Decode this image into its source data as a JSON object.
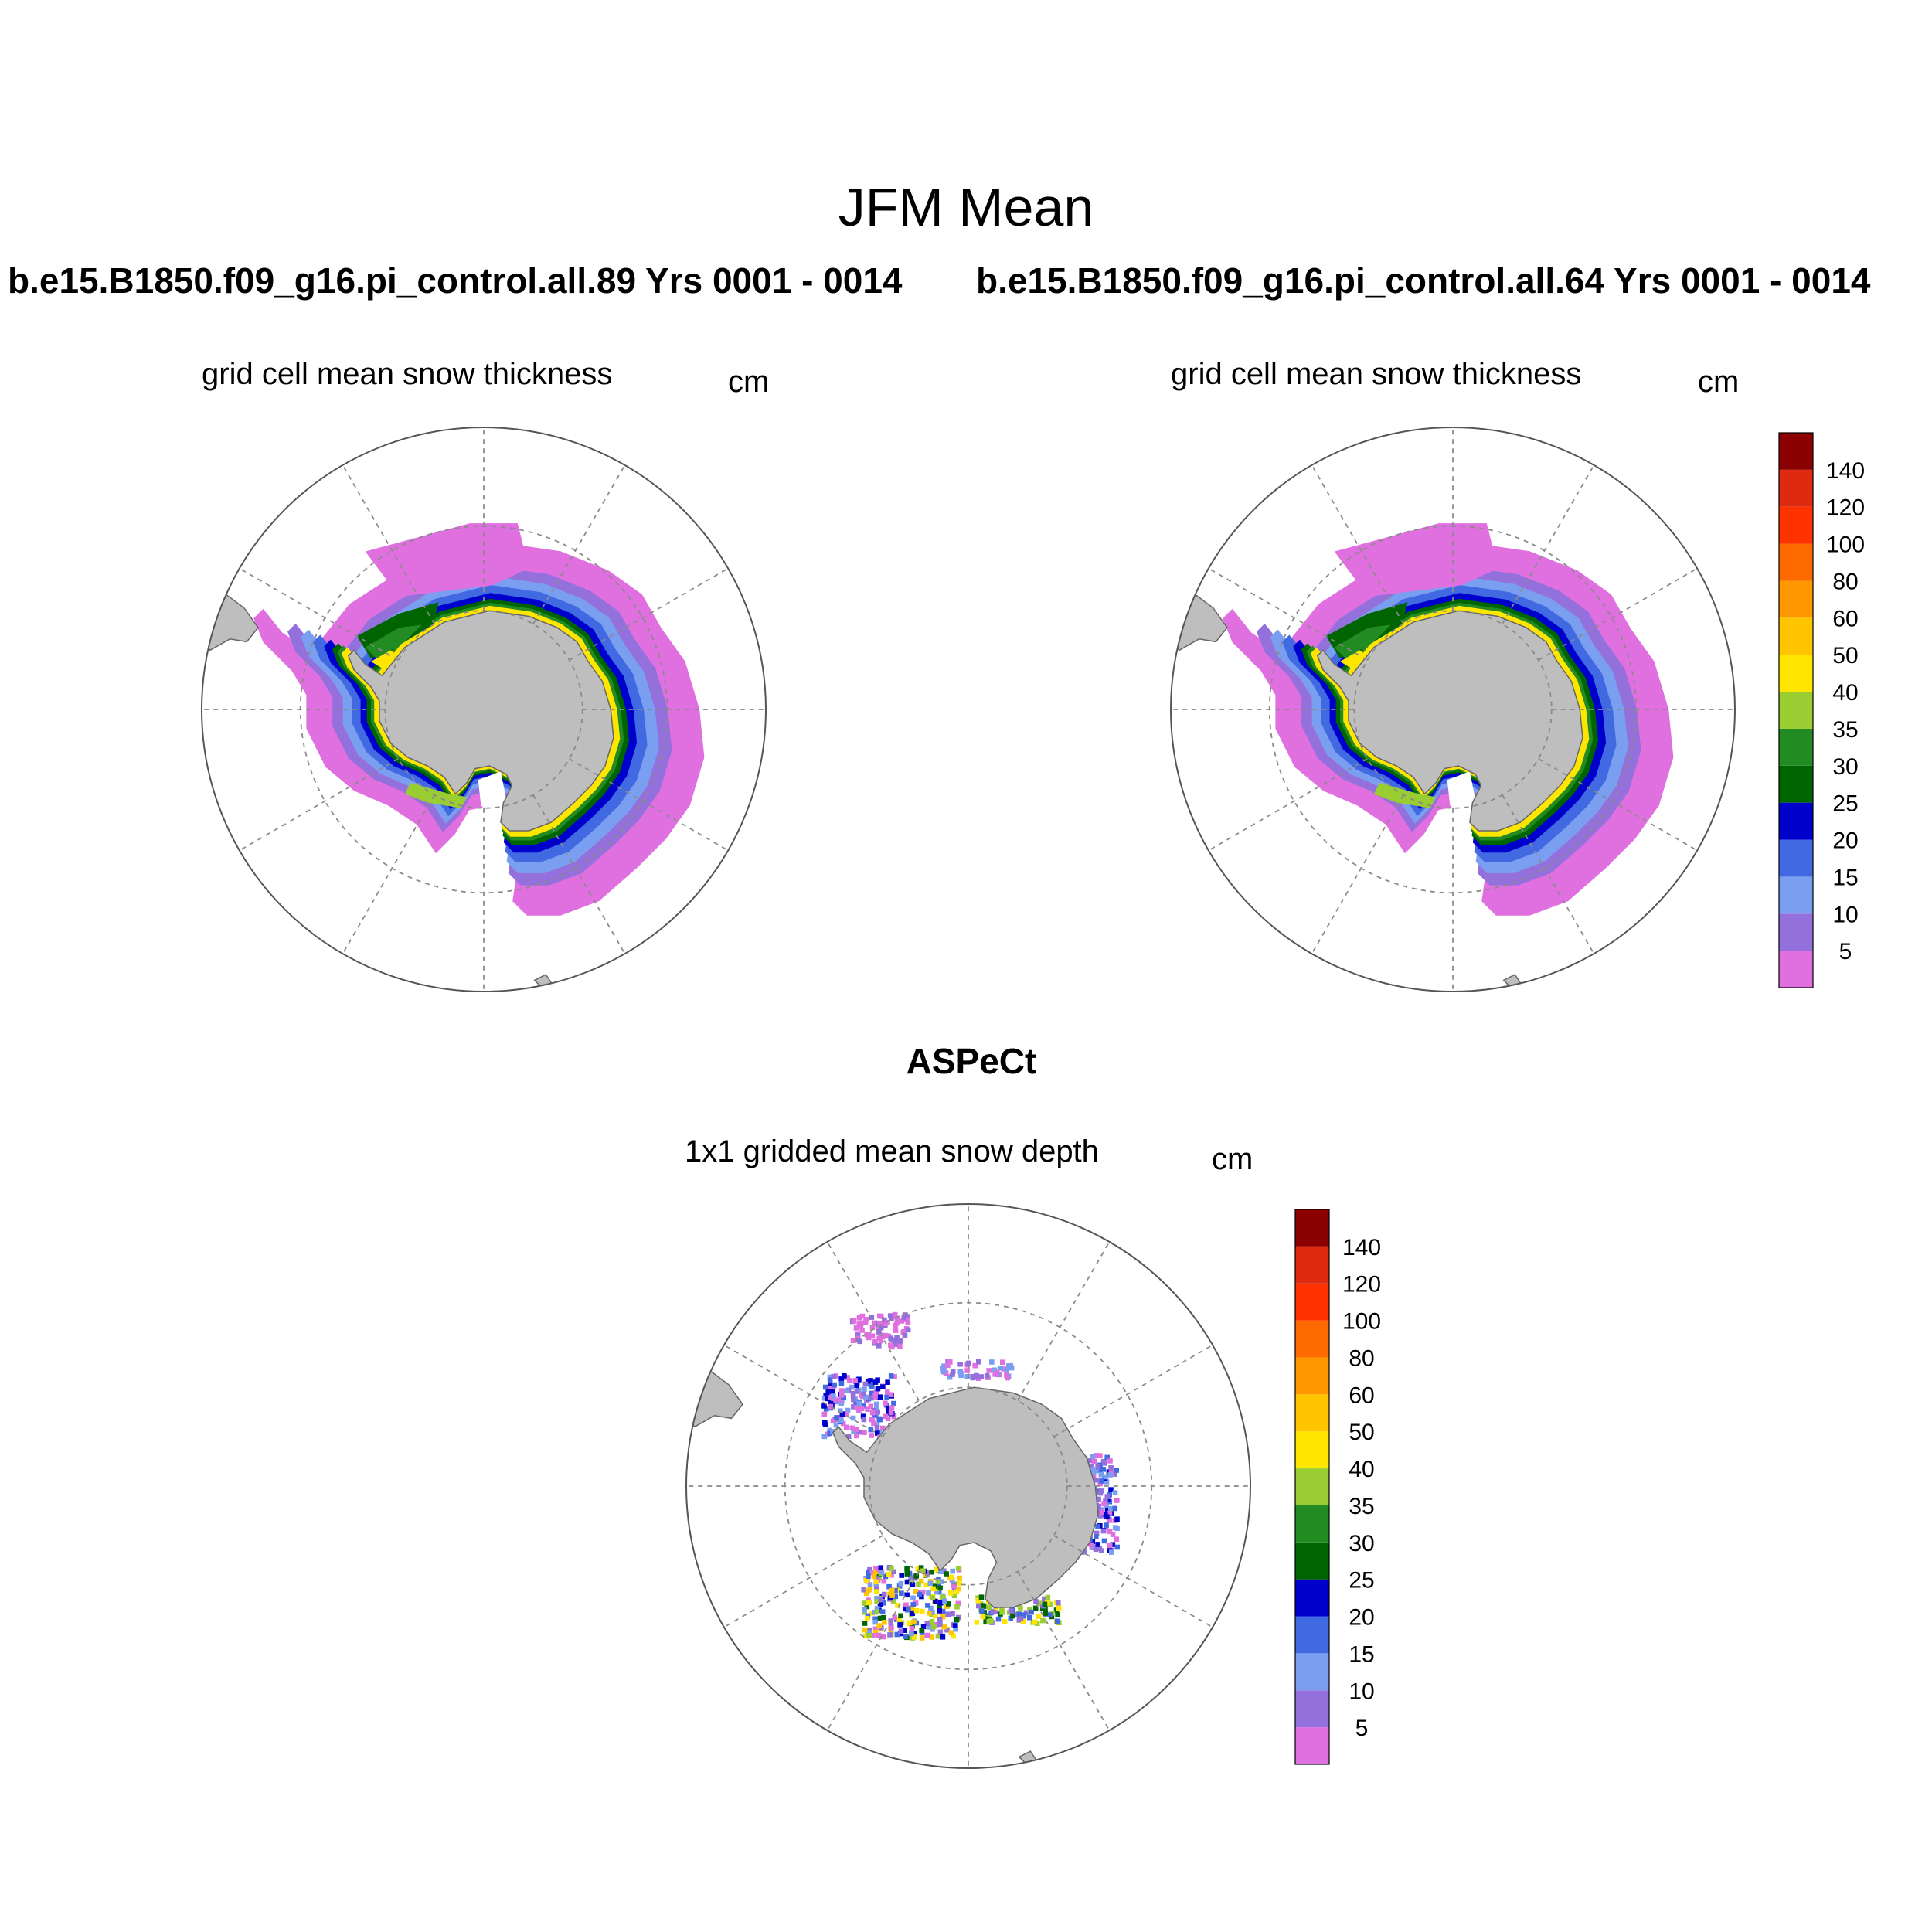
{
  "figure": {
    "title": "JFM Mean",
    "left_run_title": "b.e15.B1850.f09_g16.pi_control.all.89  Yrs 0001 - 0014",
    "right_run_title": "b.e15.B1850.f09_g16.pi_control.all.64  Yrs 0001 - 0014",
    "obs_title": "ASPeCt"
  },
  "panels": [
    {
      "id": "model-89",
      "subtitle": "grid cell mean snow thickness",
      "units": "cm"
    },
    {
      "id": "model-64",
      "subtitle": "grid cell mean snow thickness",
      "units": "cm"
    },
    {
      "id": "aspect-obs",
      "subtitle": "1x1 gridded mean snow depth",
      "units": "cm"
    }
  ],
  "colorbar": {
    "labels": [
      "5",
      "10",
      "15",
      "20",
      "25",
      "30",
      "35",
      "40",
      "50",
      "60",
      "80",
      "100",
      "120",
      "140"
    ],
    "colors": [
      "#e070e0",
      "#9370db",
      "#7b9ff0",
      "#4169e1",
      "#0000cd",
      "#006400",
      "#228b22",
      "#9acd32",
      "#ffe600",
      "#ffc600",
      "#ff9800",
      "#ff6a00",
      "#ff3300",
      "#dd2a10",
      "#8b0000"
    ]
  },
  "map_colors": {
    "land": "#bebebe",
    "coast": "#666666",
    "grid": "#8a8a8a"
  }
}
